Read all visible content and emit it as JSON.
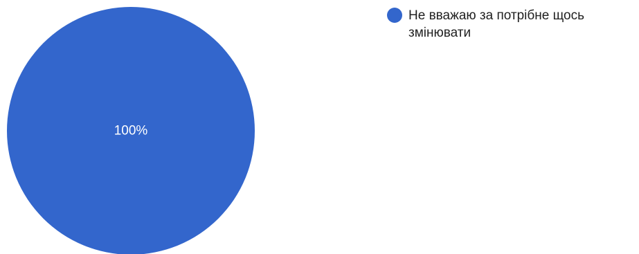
{
  "chart_data": {
    "type": "pie",
    "series": [
      {
        "name": "Не вважаю за потрібне щось змінювати",
        "values": [
          100
        ],
        "color": "#3366cc",
        "label": "100%"
      }
    ],
    "legend_position": "right"
  },
  "legend": {
    "items": [
      {
        "label": "Не вважаю за потрібне щось змінювати",
        "color": "#3366cc"
      }
    ]
  }
}
